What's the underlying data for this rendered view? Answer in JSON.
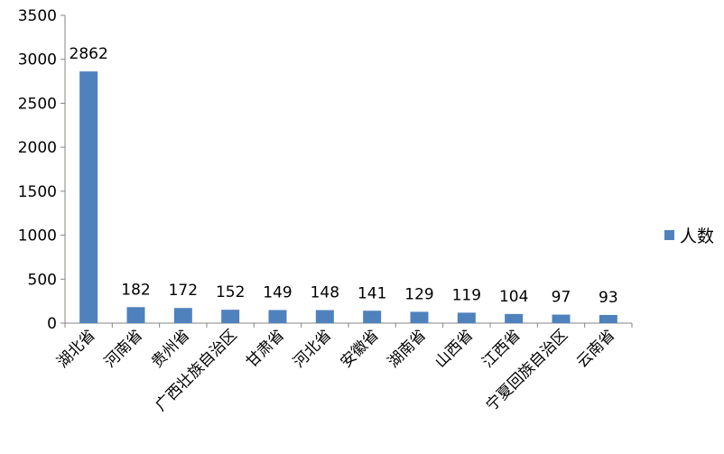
{
  "chart_data": {
    "type": "bar",
    "categories": [
      "湖北省",
      "河南省",
      "贵州省",
      "广西壮族自治区",
      "甘肃省",
      "河北省",
      "安徽省",
      "湖南省",
      "山西省",
      "江西省",
      "宁夏回族自治区",
      "云南省"
    ],
    "series": [
      {
        "name": "人数",
        "values": [
          2862,
          182,
          172,
          152,
          149,
          148,
          141,
          129,
          119,
          104,
          97,
          93
        ],
        "color": "#4f81bd"
      }
    ],
    "data_labels": [
      "2862",
      "182",
      "172",
      "152",
      "149",
      "148",
      "141",
      "129",
      "119",
      "104",
      "97",
      "93"
    ],
    "y_ticks": [
      "0",
      "500",
      "1000",
      "1500",
      "2000",
      "2500",
      "3000",
      "3500"
    ],
    "ylim": [
      0,
      3500
    ],
    "title": "",
    "xlabel": "",
    "ylabel": "",
    "grid": false,
    "legend_position": "right",
    "axis_color": "#868686"
  }
}
